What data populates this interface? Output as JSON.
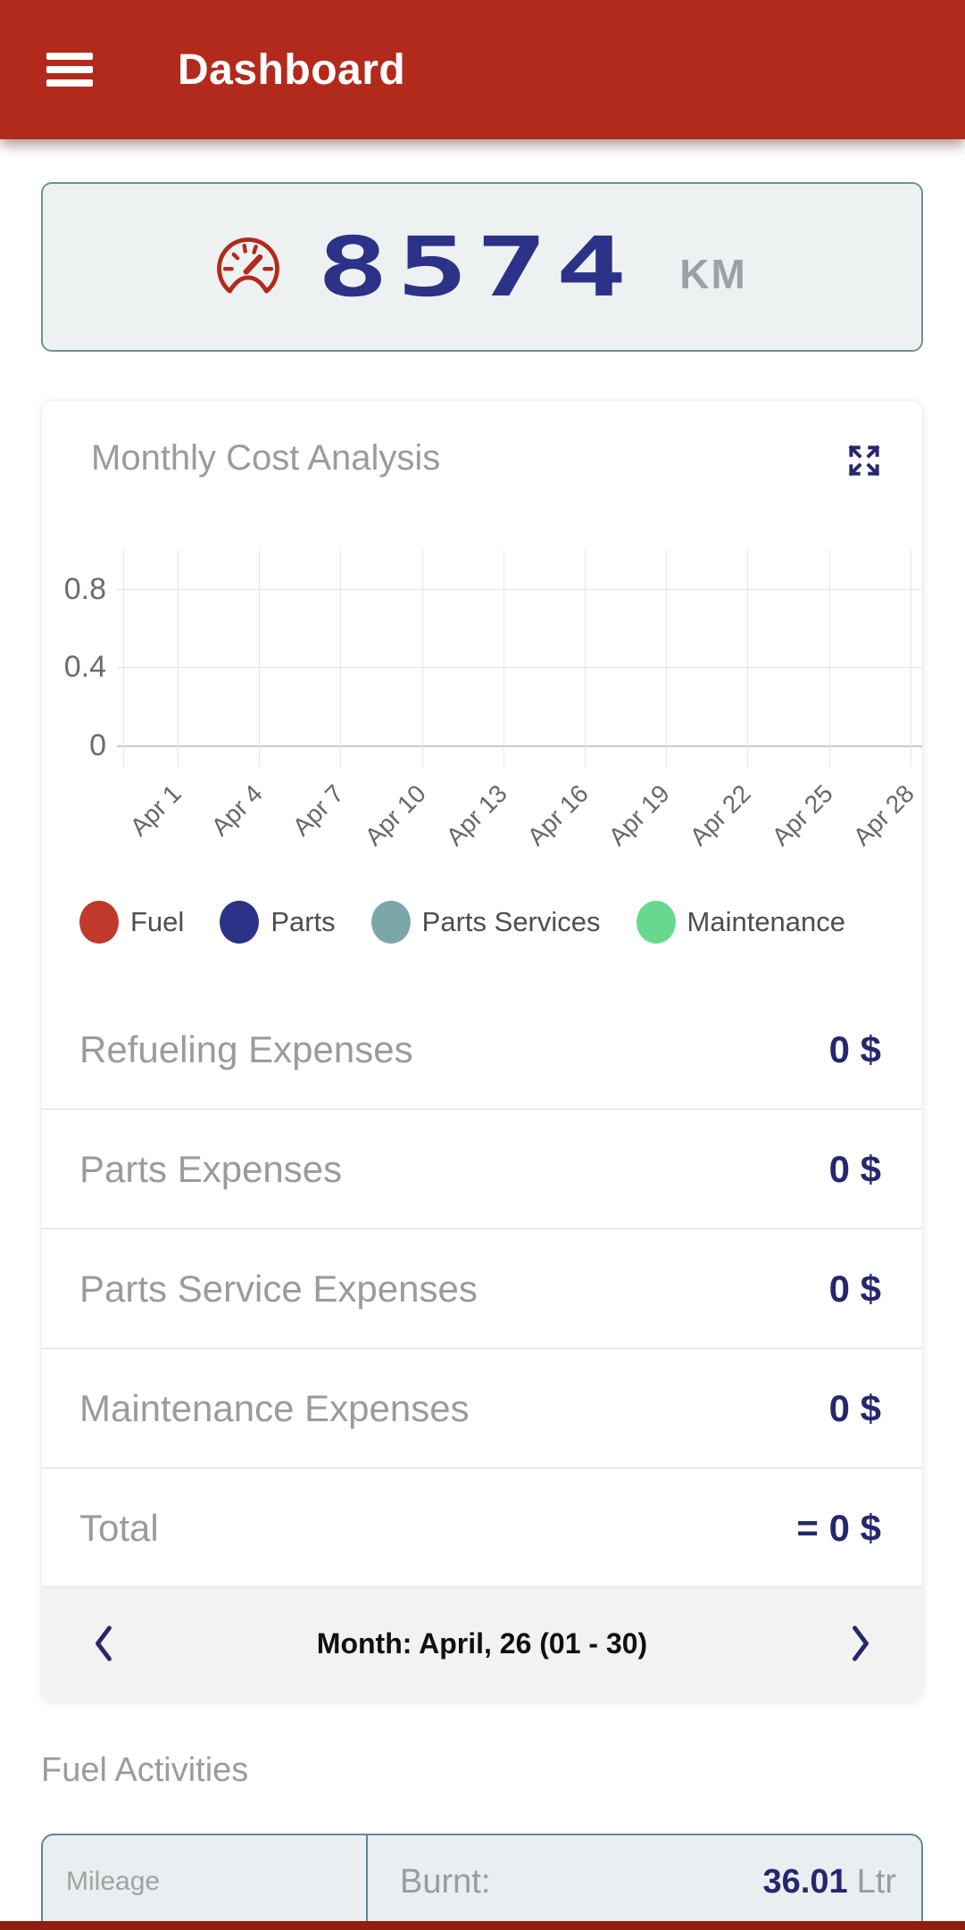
{
  "header": {
    "title": "Dashboard"
  },
  "odometer": {
    "value": "8574",
    "unit": "KM"
  },
  "monthly_card": {
    "title": "Monthly Cost Analysis",
    "legend": [
      {
        "label": "Fuel",
        "color": "#c0392b"
      },
      {
        "label": "Parts",
        "color": "#2b3287"
      },
      {
        "label": "Parts Services",
        "color": "#7ba7a8"
      },
      {
        "label": "Maintenance",
        "color": "#67d98e"
      }
    ],
    "rows": [
      {
        "label": "Refueling Expenses",
        "value": "0 $"
      },
      {
        "label": "Parts Expenses",
        "value": "0 $"
      },
      {
        "label": "Parts Service Expenses",
        "value": "0 $"
      },
      {
        "label": "Maintenance Expenses",
        "value": "0 $"
      },
      {
        "label": "Total",
        "value": "= 0 $"
      }
    ],
    "nav": {
      "label": "Month: April, 26 (01 - 30)"
    }
  },
  "chart_data": {
    "type": "line",
    "title": "Monthly Cost Analysis",
    "categories": [
      "Apr 1",
      "Apr 4",
      "Apr 7",
      "Apr 10",
      "Apr 13",
      "Apr 16",
      "Apr 19",
      "Apr 22",
      "Apr 25",
      "Apr 28"
    ],
    "series": [
      {
        "name": "Fuel",
        "color": "#c0392b",
        "values": []
      },
      {
        "name": "Parts",
        "color": "#2b3287",
        "values": []
      },
      {
        "name": "Parts Services",
        "color": "#7ba7a8",
        "values": []
      },
      {
        "name": "Maintenance",
        "color": "#67d98e",
        "values": []
      }
    ],
    "yticks": [
      0,
      0.4,
      0.8
    ],
    "ylim": [
      0,
      1
    ],
    "grid": true,
    "legend_position": "bottom",
    "xlabel": "",
    "ylabel": ""
  },
  "fuel": {
    "title": "Fuel Activities",
    "mileage_label": "Mileage",
    "burnt_label": "Burnt:",
    "burnt_value": "36.01",
    "burnt_unit": "Ltr"
  },
  "icons": {
    "menu": "hamburger-menu-icon",
    "odometer": "speedometer-gauge-icon",
    "expand": "expand-arrows-icon",
    "prev": "chevron-left-icon",
    "next": "chevron-right-icon"
  },
  "colors": {
    "header_red": "#b22a1c",
    "bottom_bar_red": "#8f1d10",
    "accent_navy": "#26276e",
    "digit_navy": "#2b3287",
    "teal_border": "#5f8b8c",
    "card_bg": "#eef1f2",
    "muted_gray": "#9b9b9b"
  }
}
